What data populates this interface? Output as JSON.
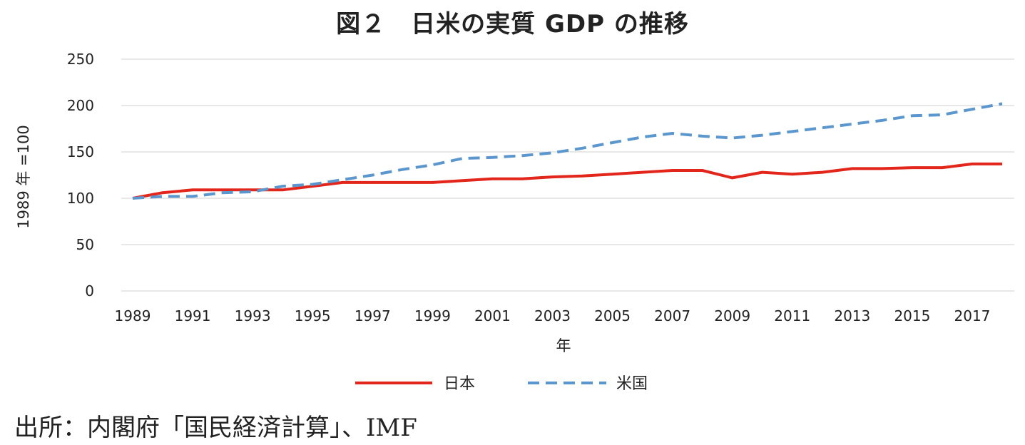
{
  "title": "図２　日米の実質 GDP の推移",
  "source": "出所：内閣府「国民経済計算」、IMF",
  "colors": {
    "japan": "#e3261b",
    "us": "#5b97cf",
    "grid": "#d9d9d9"
  },
  "chart_data": {
    "type": "line",
    "xlabel": "年",
    "ylabel": "1989 年 =100",
    "ylim": [
      0,
      250
    ],
    "yticks": [
      0,
      50,
      100,
      150,
      200,
      250
    ],
    "xlim": [
      1989,
      2018
    ],
    "xticks": [
      1989,
      1991,
      1993,
      1995,
      1997,
      1999,
      2001,
      2003,
      2005,
      2007,
      2009,
      2011,
      2013,
      2015,
      2017
    ],
    "grid": true,
    "legend_position": "bottom",
    "x": [
      1989,
      1990,
      1991,
      1992,
      1993,
      1994,
      1995,
      1996,
      1997,
      1998,
      1999,
      2000,
      2001,
      2002,
      2003,
      2004,
      2005,
      2006,
      2007,
      2008,
      2009,
      2010,
      2011,
      2012,
      2013,
      2014,
      2015,
      2016,
      2017,
      2018
    ],
    "series": [
      {
        "name": "日本",
        "style": "solid",
        "values": [
          100,
          106,
          109,
          109,
          109,
          109,
          113,
          117,
          117,
          117,
          117,
          119,
          121,
          121,
          123,
          124,
          126,
          128,
          130,
          130,
          122,
          128,
          126,
          128,
          132,
          132,
          133,
          133,
          137,
          137
        ]
      },
      {
        "name": "米国",
        "style": "dashed",
        "values": [
          100,
          102,
          102,
          106,
          107,
          113,
          115,
          120,
          125,
          131,
          136,
          143,
          144,
          146,
          149,
          154,
          160,
          166,
          170,
          167,
          165,
          168,
          172,
          176,
          180,
          184,
          189,
          190,
          196,
          202
        ]
      }
    ]
  }
}
